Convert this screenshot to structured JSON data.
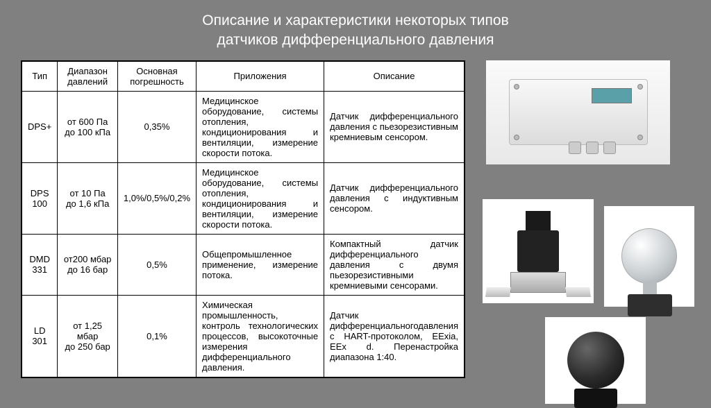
{
  "title_line1": "Описание и характеристики некоторых типов",
  "title_line2": "датчиков дифференциального давления",
  "table": {
    "headers": {
      "type": "Тип",
      "range": "Диапазон давлений",
      "accuracy": "Основная погрешность",
      "apps": "Приложения",
      "desc": "Описание"
    },
    "rows": [
      {
        "type": "DPS+",
        "range": "от 600 Па\nдо 100 кПа",
        "accuracy": "0,35%",
        "apps": "Медицинское оборудование, системы отопления, кондиционирования и вентиляции, измерение скорости потока.",
        "desc": "Датчик дифференциального давления с пьезорезистивным кремниевым сенсором."
      },
      {
        "type": "DPS 100",
        "range": "от 10 Па\nдо 1,6 кПа",
        "accuracy": "1,0%/0,5%/0,2%",
        "apps": "Медицинское оборудование, системы отопления, кондиционирования и вентиляции, измерение скорости потока.",
        "desc": "Датчик дифференциального давления с индуктивным сенсором."
      },
      {
        "type": "DMD 331",
        "range": "от200 мбар\nдо 16 бар",
        "accuracy": "0,5%",
        "apps": "Общепромышленное применение, измерение потока.",
        "desc": "Компактный датчик дифференциального давления с двумя пьезорезистивными кремниевыми сенсорами."
      },
      {
        "type": "LD 301",
        "range": "от 1,25 мбар\nдо 250 бар",
        "accuracy": "0,1%",
        "apps": "Химическая промышленность, контроль технологических процессов, высокоточные измерения дифференциального давления.",
        "desc": "Датчик дифференциальногодавления с HART-протоколом, EExia, EEx d. Перенастройка диапазона 1:40."
      }
    ]
  },
  "colors": {
    "page_bg": "#808080",
    "title_color": "#ffffff",
    "table_bg": "#ffffff",
    "border": "#000000"
  }
}
